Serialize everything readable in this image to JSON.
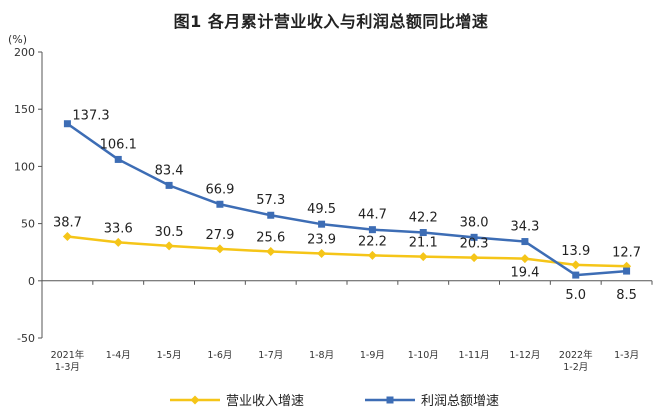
{
  "chart_data": {
    "type": "line",
    "title": "图1  各月累计营业收入与利润总额同比增速",
    "unit": "(%)",
    "ylim": [
      -50,
      200
    ],
    "yticks": [
      -50,
      0,
      50,
      100,
      150,
      200
    ],
    "grid": false,
    "legend_position": "bottom",
    "categories": [
      [
        "2021年",
        "1-3月"
      ],
      [
        "1-4月"
      ],
      [
        "1-5月"
      ],
      [
        "1-6月"
      ],
      [
        "1-7月"
      ],
      [
        "1-8月"
      ],
      [
        "1-9月"
      ],
      [
        "1-10月"
      ],
      [
        "1-11月"
      ],
      [
        "1-12月"
      ],
      [
        "2022年",
        "1-2月"
      ],
      [
        "1-3月"
      ]
    ],
    "series": [
      {
        "name": "营业收入增速",
        "color": "#f5c518",
        "marker": "diamond",
        "values": [
          38.7,
          33.6,
          30.5,
          27.9,
          25.6,
          23.9,
          22.2,
          21.1,
          20.3,
          19.4,
          13.9,
          12.7
        ],
        "labels": [
          "38.7",
          "33.6",
          "30.5",
          "27.9",
          "25.6",
          "23.9",
          "22.2",
          "21.1",
          "20.3",
          "19.4",
          "13.9",
          "12.7"
        ]
      },
      {
        "name": "利润总额增速",
        "color": "#3d6db5",
        "marker": "square",
        "values": [
          137.3,
          106.1,
          83.4,
          66.9,
          57.3,
          49.5,
          44.7,
          42.2,
          38.0,
          34.3,
          5.0,
          8.5
        ],
        "labels": [
          "137.3",
          "106.1",
          "83.4",
          "66.9",
          "57.3",
          "49.5",
          "44.7",
          "42.2",
          "38.0",
          "34.3",
          "5.0",
          "8.5"
        ]
      }
    ]
  }
}
